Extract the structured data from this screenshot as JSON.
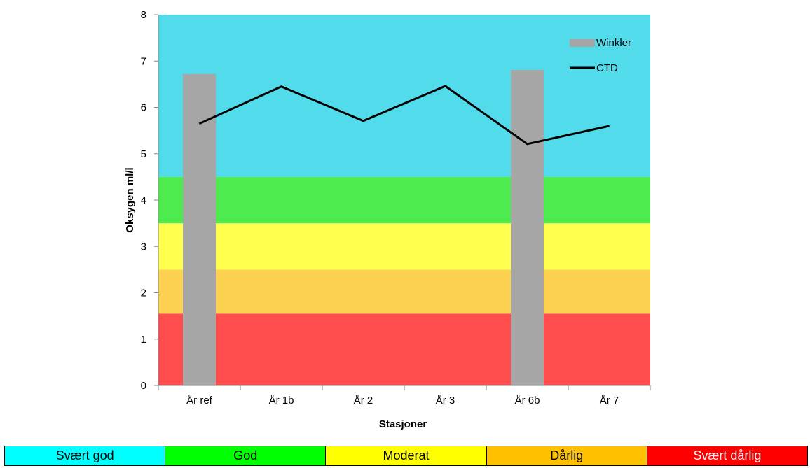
{
  "chart_data": {
    "type": "bar",
    "title": "",
    "xlabel": "Stasjoner",
    "ylabel": "Oksygen ml/l",
    "ylim": [
      0,
      8
    ],
    "yticks": [
      0,
      1,
      2,
      3,
      4,
      5,
      6,
      7,
      8
    ],
    "categories": [
      "År ref",
      "År 1b",
      "År 2",
      "År 3",
      "År 6b",
      "År 7"
    ],
    "series": [
      {
        "name": "Winkler",
        "type": "bar",
        "color": "#a6a6a6",
        "values": [
          6.72,
          null,
          null,
          null,
          6.81,
          null
        ]
      },
      {
        "name": "CTD",
        "type": "line",
        "color": "#000000",
        "values": [
          5.65,
          6.45,
          5.71,
          6.46,
          5.21,
          5.6
        ]
      }
    ],
    "bands": [
      {
        "from": 0,
        "to": 1.55,
        "color": "#ff4d4d"
      },
      {
        "from": 1.55,
        "to": 2.5,
        "color": "#fcd150"
      },
      {
        "from": 2.5,
        "to": 3.5,
        "color": "#ffff4d"
      },
      {
        "from": 3.5,
        "to": 4.5,
        "color": "#4deb4d"
      },
      {
        "from": 4.5,
        "to": 8,
        "color": "#52dbeb"
      }
    ],
    "legend_position": "top-right",
    "grid": false
  },
  "classes": [
    {
      "label": "Svært god",
      "bg": "#00ffff",
      "fg": "#000000"
    },
    {
      "label": "God",
      "bg": "#00ff00",
      "fg": "#000000"
    },
    {
      "label": "Moderat",
      "bg": "#ffff00",
      "fg": "#000000"
    },
    {
      "label": "Dårlig",
      "bg": "#ffc000",
      "fg": "#000000"
    },
    {
      "label": "Svært dårlig",
      "bg": "#ff0000",
      "fg": "#ffffff"
    }
  ]
}
